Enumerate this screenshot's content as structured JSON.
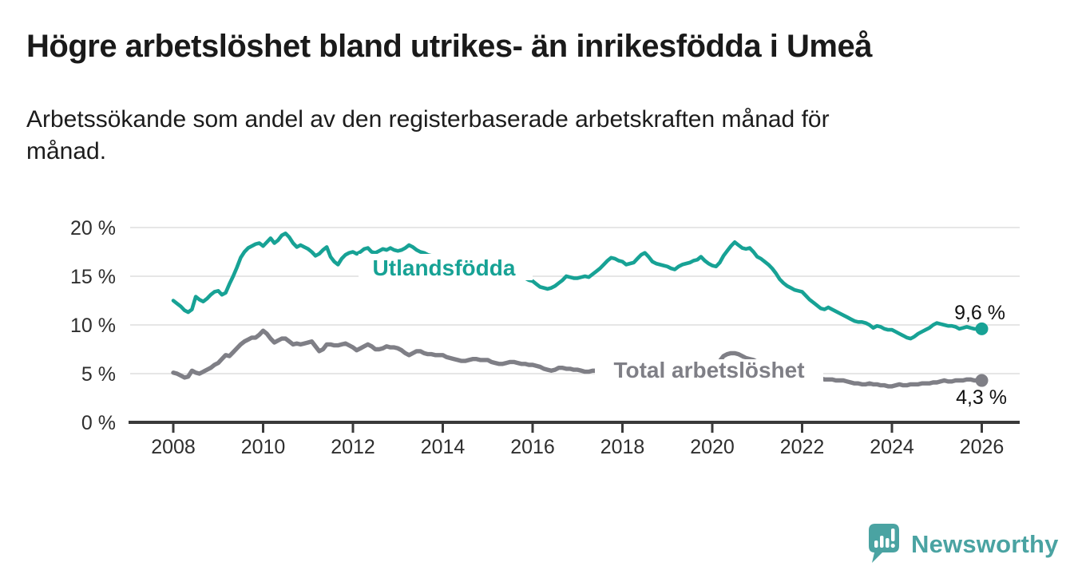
{
  "title": "Högre arbetslöshet bland utrikes- än inrikesfödda i Umeå",
  "subtitle": "Arbetssökande som andel av den registerbaserade arbetskraften månad för månad.",
  "colors": {
    "foreign_born": "#17a295",
    "total": "#7f7f86",
    "axis": "#3a3a3a",
    "gridline": "#dddddd",
    "tick_text": "#2e2e2e",
    "title_text": "#1a1a1a",
    "logo": "#4aa3a2",
    "background": "#ffffff"
  },
  "chart_data": {
    "type": "line",
    "unit": "%",
    "title": "Högre arbetslöshet bland utrikes- än inrikesfödda i Umeå",
    "subtitle": "Arbetssökande som andel av den registerbaserade arbetskraften månad för månad.",
    "x_start": 2008.0,
    "points_per_year": 12,
    "xlim": [
      2007.0,
      2026.85
    ],
    "ylim": [
      0,
      20
    ],
    "grid": true,
    "legend_position": "inline-labels",
    "x_tick_years": [
      2008,
      2010,
      2012,
      2014,
      2016,
      2018,
      2020,
      2022,
      2024,
      2026
    ],
    "x_tick_labels": [
      "2008",
      "2010",
      "2012",
      "2014",
      "2016",
      "2018",
      "2020",
      "2022",
      "2024",
      "2026"
    ],
    "y_tick_values": [
      0,
      5,
      10,
      15,
      20
    ],
    "y_tick_labels": [
      "0 %",
      "5 %",
      "10 %",
      "15 %",
      "20 %"
    ],
    "series": [
      {
        "name": "Utlandsfödda",
        "color": "#17a295",
        "end_label": "9,6 %",
        "end_value": 9.6,
        "values": [
          12.5,
          12.2,
          11.9,
          11.5,
          11.3,
          11.6,
          12.9,
          12.6,
          12.4,
          12.7,
          13.1,
          13.4,
          13.5,
          13.1,
          13.3,
          14.2,
          15.0,
          15.9,
          16.9,
          17.5,
          17.9,
          18.1,
          18.3,
          18.4,
          18.1,
          18.5,
          18.9,
          18.4,
          18.7,
          19.2,
          19.4,
          19.0,
          18.4,
          18.0,
          18.2,
          18.0,
          17.8,
          17.5,
          17.1,
          17.3,
          17.7,
          18.0,
          17.0,
          16.5,
          16.2,
          16.8,
          17.2,
          17.4,
          17.5,
          17.3,
          17.5,
          17.8,
          17.9,
          17.5,
          17.4,
          17.6,
          17.8,
          17.7,
          17.9,
          17.7,
          17.6,
          17.7,
          17.9,
          18.2,
          18.0,
          17.7,
          17.5,
          17.4,
          17.2,
          17.1,
          17.0,
          16.9,
          16.9,
          16.7,
          16.6,
          16.5,
          16.4,
          16.3,
          16.2,
          16.1,
          16.0,
          15.9,
          15.8,
          15.7,
          15.7,
          15.6,
          15.5,
          15.4,
          15.4,
          15.3,
          15.2,
          15.1,
          15.0,
          14.9,
          14.8,
          14.6,
          14.5,
          14.2,
          13.9,
          13.8,
          13.7,
          13.8,
          14.0,
          14.3,
          14.6,
          15.0,
          14.9,
          14.8,
          14.8,
          14.9,
          15.0,
          14.9,
          15.2,
          15.5,
          15.8,
          16.2,
          16.6,
          16.9,
          16.8,
          16.6,
          16.5,
          16.2,
          16.3,
          16.4,
          16.8,
          17.2,
          17.4,
          17.0,
          16.5,
          16.3,
          16.2,
          16.1,
          16.0,
          15.8,
          15.7,
          16.0,
          16.2,
          16.3,
          16.4,
          16.6,
          16.7,
          17.0,
          16.6,
          16.3,
          16.1,
          16.0,
          16.4,
          17.1,
          17.6,
          18.1,
          18.5,
          18.2,
          17.9,
          17.8,
          17.9,
          17.5,
          17.0,
          16.8,
          16.5,
          16.2,
          15.8,
          15.3,
          14.7,
          14.3,
          14.0,
          13.8,
          13.6,
          13.5,
          13.4,
          13.0,
          12.6,
          12.3,
          12.0,
          11.7,
          11.6,
          11.8,
          11.6,
          11.4,
          11.2,
          11.0,
          10.8,
          10.6,
          10.4,
          10.3,
          10.3,
          10.2,
          10.0,
          9.7,
          9.9,
          9.8,
          9.6,
          9.5,
          9.5,
          9.3,
          9.1,
          8.9,
          8.7,
          8.6,
          8.8,
          9.1,
          9.3,
          9.5,
          9.7,
          10.0,
          10.2,
          10.1,
          10.0,
          9.9,
          9.9,
          9.8,
          9.6,
          9.7,
          9.8,
          9.7,
          9.6,
          9.6,
          9.6
        ]
      },
      {
        "name": "Total arbetslöshet",
        "color": "#7f7f86",
        "end_label": "4,3 %",
        "end_value": 4.3,
        "values": [
          5.1,
          5.0,
          4.8,
          4.6,
          4.7,
          5.3,
          5.1,
          5.0,
          5.2,
          5.4,
          5.6,
          5.9,
          6.1,
          6.5,
          6.9,
          6.8,
          7.2,
          7.6,
          8.0,
          8.3,
          8.5,
          8.7,
          8.7,
          9.0,
          9.4,
          9.1,
          8.6,
          8.2,
          8.4,
          8.6,
          8.6,
          8.3,
          8.0,
          8.1,
          8.0,
          8.1,
          8.2,
          8.3,
          7.8,
          7.3,
          7.5,
          8.0,
          8.0,
          7.9,
          7.9,
          8.0,
          8.1,
          7.9,
          7.7,
          7.4,
          7.6,
          7.8,
          8.0,
          7.8,
          7.5,
          7.5,
          7.6,
          7.8,
          7.7,
          7.7,
          7.6,
          7.4,
          7.1,
          6.9,
          7.1,
          7.3,
          7.3,
          7.1,
          7.0,
          7.0,
          6.9,
          6.9,
          6.9,
          6.7,
          6.6,
          6.5,
          6.4,
          6.3,
          6.3,
          6.4,
          6.5,
          6.5,
          6.4,
          6.4,
          6.4,
          6.2,
          6.1,
          6.0,
          6.0,
          6.1,
          6.2,
          6.2,
          6.1,
          6.0,
          6.0,
          5.9,
          5.9,
          5.8,
          5.7,
          5.5,
          5.4,
          5.3,
          5.4,
          5.6,
          5.6,
          5.5,
          5.5,
          5.4,
          5.4,
          5.3,
          5.2,
          5.2,
          5.3,
          5.3,
          5.2,
          5.2,
          5.2,
          5.3,
          5.3,
          5.3,
          5.3,
          5.2,
          5.1,
          5.1,
          5.0,
          5.0,
          5.0,
          5.1,
          5.1,
          5.1,
          5.1,
          5.1,
          5.1,
          5.1,
          5.2,
          5.2,
          5.2,
          5.2,
          5.3,
          5.3,
          5.3,
          5.4,
          5.4,
          5.4,
          5.5,
          5.7,
          6.3,
          6.8,
          7.0,
          7.1,
          7.1,
          7.0,
          6.8,
          6.6,
          6.5,
          6.4,
          6.2,
          6.1,
          5.9,
          5.7,
          5.6,
          5.5,
          5.3,
          5.2,
          5.1,
          5.0,
          5.0,
          4.9,
          4.9,
          4.8,
          4.7,
          4.6,
          4.5,
          4.5,
          4.4,
          4.4,
          4.4,
          4.3,
          4.3,
          4.3,
          4.2,
          4.1,
          4.0,
          4.0,
          3.9,
          3.9,
          4.0,
          3.9,
          3.9,
          3.8,
          3.8,
          3.7,
          3.7,
          3.8,
          3.9,
          3.8,
          3.8,
          3.9,
          3.9,
          3.9,
          4.0,
          4.0,
          4.0,
          4.1,
          4.1,
          4.2,
          4.3,
          4.2,
          4.2,
          4.3,
          4.3,
          4.3,
          4.4,
          4.4,
          4.3,
          4.3,
          4.3
        ]
      }
    ]
  },
  "footer": {
    "brand": "Newsworthy"
  }
}
